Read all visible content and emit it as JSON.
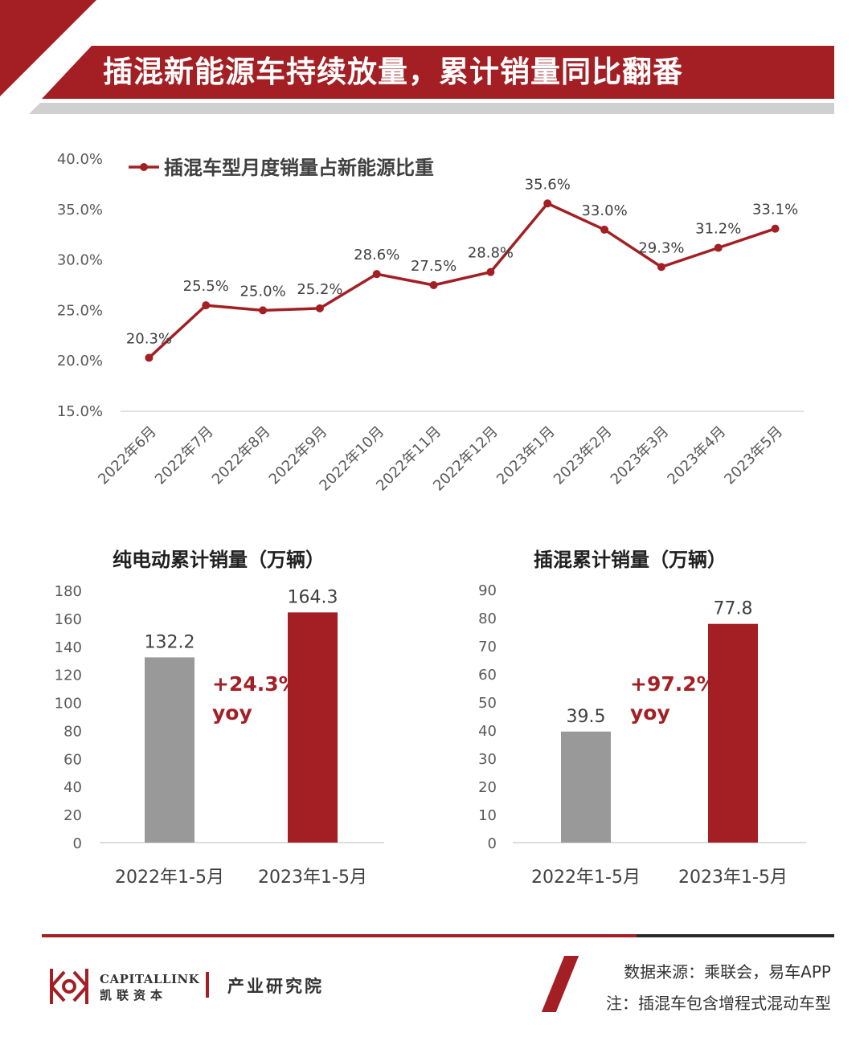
{
  "header": {
    "title": "插混新能源车持续放量，累计销量同比翻番"
  },
  "charts": {
    "line": {
      "legend": "插混车型月度销量占新能源比重",
      "y_ticks": [
        "40.0%",
        "35.0%",
        "30.0%",
        "25.0%",
        "20.0%",
        "15.0%"
      ]
    },
    "bev": {
      "title": "纯电动累计销量（万辆）",
      "yoy_value": "+24.3%",
      "yoy_label": "yoy",
      "y_ticks": [
        "180",
        "160",
        "140",
        "120",
        "100",
        "80",
        "60",
        "40",
        "20",
        "0"
      ]
    },
    "phev": {
      "title": "插混累计销量（万辆）",
      "yoy_value": "+97.2%",
      "yoy_label": "yoy",
      "y_ticks": [
        "90",
        "80",
        "70",
        "60",
        "50",
        "40",
        "30",
        "20",
        "10",
        "0"
      ]
    }
  },
  "chart_data": [
    {
      "type": "line",
      "categories": [
        "2022年6月",
        "2022年7月",
        "2022年8月",
        "2022年9月",
        "2022年10月",
        "2022年11月",
        "2022年12月",
        "2023年1月",
        "2023年2月",
        "2023年3月",
        "2023年4月",
        "2023年5月"
      ],
      "series": [
        {
          "name": "插混车型月度销量占新能源比重",
          "values": [
            20.3,
            25.5,
            25.0,
            25.2,
            28.6,
            27.5,
            28.8,
            35.6,
            33.0,
            29.3,
            31.2,
            33.1
          ],
          "labels": [
            "20.3%",
            "25.5%",
            "25.0%",
            "25.2%",
            "28.6%",
            "27.5%",
            "28.8%",
            "35.6%",
            "33.0%",
            "29.3%",
            "31.2%",
            "33.1%"
          ]
        }
      ],
      "ylim": [
        15,
        40
      ],
      "grid": false,
      "legend": "top-left",
      "color": "#a31f24"
    },
    {
      "type": "bar",
      "title": "纯电动累计销量（万辆）",
      "categories": [
        "2022年1-5月",
        "2023年1-5月"
      ],
      "values": [
        132.2,
        164.3
      ],
      "labels": [
        "132.2",
        "164.3"
      ],
      "ylim": [
        0,
        180
      ],
      "colors": [
        "#999999",
        "#a31f24"
      ]
    },
    {
      "type": "bar",
      "title": "插混累计销量（万辆）",
      "categories": [
        "2022年1-5月",
        "2023年1-5月"
      ],
      "values": [
        39.5,
        77.8
      ],
      "labels": [
        "39.5",
        "77.8"
      ],
      "ylim": [
        0,
        90
      ],
      "colors": [
        "#999999",
        "#a31f24"
      ]
    }
  ],
  "footer": {
    "brand_en": "CAPITALLINK",
    "brand_cn": "凯联资本",
    "institute": "产业研究院",
    "source": "数据来源：乘联会，易车APP",
    "note": "注：插混车包含增程式混动车型"
  }
}
